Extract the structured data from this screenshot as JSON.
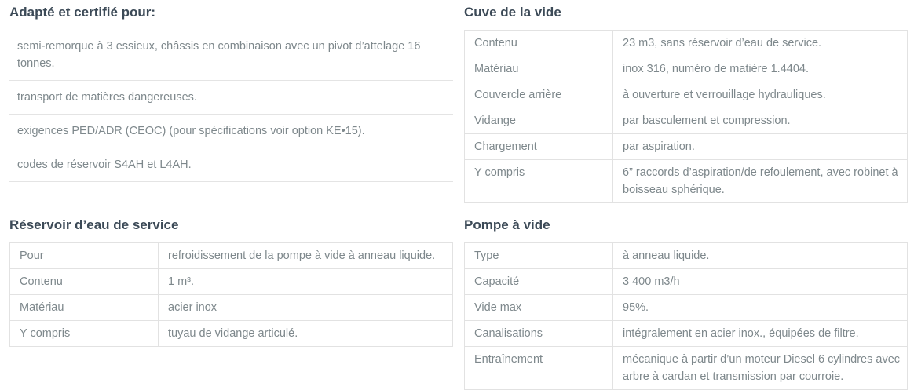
{
  "colors": {
    "heading": "#3c4a57",
    "body_text": "#7e888c",
    "border": "#e2e2e2",
    "background": "#ffffff"
  },
  "sections": {
    "certified": {
      "title": "Adapté et certifié pour:",
      "items": [
        "semi-remorque à 3 essieux, châssis en combinaison avec un pivot d’attelage 16 tonnes.",
        "transport de matières dangereuses.",
        "exigences PED/ADR (CEOC) (pour spécifications voir option KE•15).",
        "codes de réservoir S4AH et L4AH."
      ]
    },
    "cuve": {
      "title": "Cuve de la vide",
      "rows": [
        {
          "label": "Contenu",
          "value": "23 m3, sans réservoir d’eau de service."
        },
        {
          "label": "Matériau",
          "value": "inox 316, numéro de matière 1.4404."
        },
        {
          "label": "Couvercle arrière",
          "value": "à ouverture et verrouillage hydrauliques."
        },
        {
          "label": "Vidange",
          "value": "par basculement et compression."
        },
        {
          "label": "Chargement",
          "value": "par aspiration."
        },
        {
          "label": "Y compris",
          "value": "6” raccords d’aspiration/de refoulement, avec robinet à boisseau sphérique."
        }
      ]
    },
    "reservoir": {
      "title": "Réservoir d’eau de service",
      "rows": [
        {
          "label": "Pour",
          "value": "refroidissement de la pompe à vide à anneau liquide."
        },
        {
          "label": "Contenu",
          "value": "1 m³."
        },
        {
          "label": "Matériau",
          "value": "acier inox"
        },
        {
          "label": "Y compris",
          "value": "tuyau de vidange articulé."
        }
      ]
    },
    "pompe": {
      "title": "Pompe à vide",
      "rows": [
        {
          "label": "Type",
          "value": "à anneau liquide."
        },
        {
          "label": "Capacité",
          "value": "3 400 m3/h"
        },
        {
          "label": "Vide max",
          "value": "95%."
        },
        {
          "label": "Canalisations",
          "value": "intégralement en acier inox., équipées de filtre."
        },
        {
          "label": "Entraînement",
          "value": "mécanique à partir d’un moteur Diesel 6 cylindres avec arbre à cardan et transmission par courroie."
        }
      ]
    }
  }
}
